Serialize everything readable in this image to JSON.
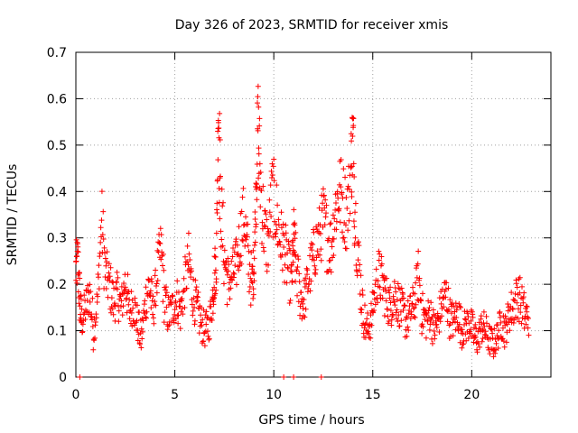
{
  "chart_data": {
    "type": "scatter",
    "title": "Day 326 of 2023, SRMTID for receiver xmis",
    "xlabel": "GPS time / hours",
    "ylabel": "SRMTID / TECUs",
    "xlim": [
      0,
      24
    ],
    "ylim": [
      0,
      0.7
    ],
    "x_ticks": [
      0,
      5,
      10,
      15,
      20
    ],
    "x_tick_labels": [
      "0",
      "5",
      "10",
      "15",
      "20"
    ],
    "y_ticks": [
      0,
      0.1,
      0.2,
      0.3,
      0.4,
      0.5,
      0.6,
      0.7
    ],
    "y_tick_labels": [
      "0",
      "0.1",
      "0.2",
      "0.3",
      "0.4",
      "0.5",
      "0.6",
      "0.7"
    ],
    "grid": true,
    "marker": "+",
    "color": "#ff0000",
    "series": [
      {
        "name": "SRMTID",
        "x": [
          0.0,
          0.1,
          0.2,
          0.3,
          0.5,
          0.7,
          0.9,
          1.1,
          1.3,
          1.5,
          1.7,
          1.9,
          2.1,
          2.3,
          2.5,
          2.7,
          2.9,
          3.1,
          3.3,
          3.5,
          3.7,
          3.9,
          4.1,
          4.3,
          4.5,
          4.7,
          4.9,
          5.1,
          5.3,
          5.5,
          5.7,
          5.9,
          6.1,
          6.3,
          6.5,
          6.7,
          6.9,
          7.0,
          7.1,
          7.2,
          7.3,
          7.5,
          7.7,
          7.9,
          8.1,
          8.3,
          8.5,
          8.7,
          8.9,
          9.0,
          9.1,
          9.2,
          9.3,
          9.5,
          9.7,
          9.9,
          10.1,
          10.3,
          10.5,
          10.7,
          10.9,
          11.0,
          11.1,
          11.3,
          11.5,
          11.7,
          11.9,
          12.1,
          12.3,
          12.5,
          12.7,
          12.9,
          13.1,
          13.3,
          13.5,
          13.7,
          13.9,
          14.0,
          14.1,
          14.3,
          14.5,
          14.7,
          14.9,
          15.1,
          15.3,
          15.5,
          15.7,
          15.9,
          16.1,
          16.3,
          16.5,
          16.7,
          16.9,
          17.1,
          17.3,
          17.5,
          17.7,
          17.9,
          18.1,
          18.3,
          18.5,
          18.7,
          18.9,
          19.1,
          19.3,
          19.5,
          19.7,
          19.9,
          20.1,
          20.3,
          20.5,
          20.7,
          20.9,
          21.1,
          21.3,
          21.5,
          21.7,
          21.9,
          22.1,
          22.3,
          22.5,
          22.7
        ],
        "y": [
          0.23,
          0.25,
          0.16,
          0.12,
          0.15,
          0.18,
          0.1,
          0.17,
          0.34,
          0.22,
          0.2,
          0.16,
          0.18,
          0.15,
          0.21,
          0.14,
          0.16,
          0.12,
          0.08,
          0.16,
          0.2,
          0.14,
          0.22,
          0.28,
          0.16,
          0.13,
          0.15,
          0.17,
          0.14,
          0.2,
          0.25,
          0.18,
          0.15,
          0.12,
          0.1,
          0.11,
          0.16,
          0.22,
          0.25,
          0.6,
          0.38,
          0.26,
          0.2,
          0.22,
          0.24,
          0.3,
          0.35,
          0.25,
          0.2,
          0.24,
          0.4,
          0.55,
          0.44,
          0.32,
          0.28,
          0.4,
          0.36,
          0.3,
          0.28,
          0.24,
          0.2,
          0.3,
          0.25,
          0.18,
          0.16,
          0.2,
          0.24,
          0.28,
          0.3,
          0.34,
          0.3,
          0.28,
          0.36,
          0.4,
          0.38,
          0.35,
          0.45,
          0.52,
          0.36,
          0.24,
          0.14,
          0.1,
          0.12,
          0.18,
          0.22,
          0.2,
          0.17,
          0.15,
          0.18,
          0.16,
          0.14,
          0.12,
          0.14,
          0.16,
          0.22,
          0.14,
          0.12,
          0.14,
          0.1,
          0.12,
          0.16,
          0.18,
          0.13,
          0.12,
          0.14,
          0.1,
          0.11,
          0.12,
          0.09,
          0.08,
          0.11,
          0.1,
          0.08,
          0.07,
          0.09,
          0.12,
          0.1,
          0.14,
          0.15,
          0.18,
          0.16,
          0.13
        ]
      }
    ],
    "zero_markers_x": [
      0.2,
      10.5,
      11.0,
      12.4
    ]
  }
}
